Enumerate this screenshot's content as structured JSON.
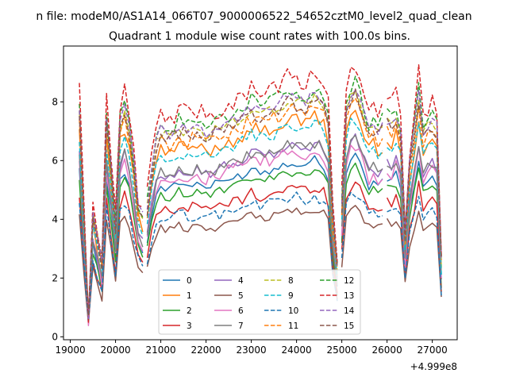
{
  "suptitle": "n file: modeM0/AS1A14_066T07_9000006522_54652cztM0_level2_quad_clean",
  "chart_data": {
    "type": "line",
    "title": "Quadrant 1 module wise count rates with 100.0s bins.",
    "xlabel": "",
    "ylabel": "",
    "offset_text": "+4.999e8",
    "xlim": [
      18850,
      27550
    ],
    "ylim": [
      -0.1,
      9.9
    ],
    "xticks": [
      19000,
      20000,
      21000,
      22000,
      23000,
      24000,
      25000,
      26000,
      27000
    ],
    "xtick_labels": [
      "19000",
      "20000",
      "21000",
      "22000",
      "23000",
      "24000",
      "25000",
      "26000",
      "27000"
    ],
    "yticks": [
      0,
      2,
      4,
      6,
      8
    ],
    "ytick_labels": [
      "0",
      "2",
      "4",
      "6",
      "8"
    ],
    "grid": false,
    "legend_position": "lower-center",
    "legend_columns": 4,
    "x": {
      "start": 19200,
      "step": 100,
      "segments": [
        [
          19200,
          20600
        ],
        [
          20700,
          24900
        ],
        [
          25000,
          25900
        ],
        [
          26000,
          27200
        ]
      ]
    },
    "series": [
      {
        "name": "0",
        "color": "#1f77b4",
        "dash": "solid",
        "level": 5.4,
        "spread": 0.15
      },
      {
        "name": "1",
        "color": "#ff7f0e",
        "dash": "solid",
        "level": 6.7,
        "spread": 0.25
      },
      {
        "name": "2",
        "color": "#2ca02c",
        "dash": "solid",
        "level": 5.1,
        "spread": 0.15
      },
      {
        "name": "3",
        "color": "#d62728",
        "dash": "solid",
        "level": 4.6,
        "spread": 0.2
      },
      {
        "name": "4",
        "color": "#9467bd",
        "dash": "solid",
        "level": 5.9,
        "spread": 0.2
      },
      {
        "name": "5",
        "color": "#8c564b",
        "dash": "solid",
        "level": 3.9,
        "spread": 0.15
      },
      {
        "name": "6",
        "color": "#e377c2",
        "dash": "solid",
        "level": 5.7,
        "spread": 0.25
      },
      {
        "name": "7",
        "color": "#7f7f7f",
        "dash": "solid",
        "level": 5.9,
        "spread": 0.2
      },
      {
        "name": "8",
        "color": "#bcbd22",
        "dash": "dashed",
        "level": 7.3,
        "spread": 0.2
      },
      {
        "name": "9",
        "color": "#17becf",
        "dash": "dashed",
        "level": 6.5,
        "spread": 0.2
      },
      {
        "name": "10",
        "color": "#1f77b4",
        "dash": "dashed",
        "level": 4.3,
        "spread": 0.2
      },
      {
        "name": "11",
        "color": "#ff7f0e",
        "dash": "dashed",
        "level": 7.0,
        "spread": 0.25
      },
      {
        "name": "12",
        "color": "#2ca02c",
        "dash": "dashed",
        "level": 7.6,
        "spread": 0.25
      },
      {
        "name": "13",
        "color": "#d62728",
        "dash": "dashed",
        "level": 8.0,
        "spread": 0.35
      },
      {
        "name": "14",
        "color": "#9467bd",
        "dash": "dashed",
        "level": 7.4,
        "spread": 0.2
      },
      {
        "name": "15",
        "color": "#8c564b",
        "dash": "dashed",
        "level": 7.2,
        "spread": 0.25
      }
    ],
    "shape": [
      [
        19200,
        1.05
      ],
      [
        19300,
        0.55
      ],
      [
        19400,
        0.1
      ],
      [
        19500,
        0.58
      ],
      [
        19600,
        0.45
      ],
      [
        19700,
        0.33
      ],
      [
        19800,
        1.0
      ],
      [
        19900,
        0.78
      ],
      [
        20000,
        0.5
      ],
      [
        20100,
        0.98
      ],
      [
        20200,
        1.05
      ],
      [
        20300,
        0.97
      ],
      [
        20400,
        0.8
      ],
      [
        20500,
        0.6
      ],
      [
        20600,
        0.55
      ],
      [
        20700,
        0.6
      ],
      [
        20800,
        0.75
      ],
      [
        20900,
        0.9
      ],
      [
        21000,
        0.95
      ],
      [
        21200,
        0.93
      ],
      [
        21400,
        0.97
      ],
      [
        21600,
        0.95
      ],
      [
        21800,
        0.97
      ],
      [
        22000,
        0.94
      ],
      [
        22200,
        0.96
      ],
      [
        22400,
        0.98
      ],
      [
        22600,
        1.0
      ],
      [
        22800,
        1.02
      ],
      [
        23000,
        1.06
      ],
      [
        23200,
        1.04
      ],
      [
        23400,
        1.05
      ],
      [
        23600,
        1.07
      ],
      [
        23800,
        1.1
      ],
      [
        24000,
        1.1
      ],
      [
        24200,
        1.08
      ],
      [
        24400,
        1.12
      ],
      [
        24600,
        1.08
      ],
      [
        24700,
        1.0
      ],
      [
        24800,
        0.55
      ],
      [
        24900,
        0.3
      ],
      [
        25000,
        0.62
      ],
      [
        25100,
        1.05
      ],
      [
        25200,
        1.12
      ],
      [
        25300,
        1.14
      ],
      [
        25400,
        1.1
      ],
      [
        25500,
        1.02
      ],
      [
        25600,
        0.95
      ],
      [
        25700,
        0.98
      ],
      [
        25800,
        0.95
      ],
      [
        25900,
        0.97
      ],
      [
        26000,
        1.0
      ],
      [
        26100,
        0.98
      ],
      [
        26200,
        1.02
      ],
      [
        26300,
        0.95
      ],
      [
        26400,
        0.45
      ],
      [
        26500,
        0.8
      ],
      [
        26600,
        0.95
      ],
      [
        26700,
        1.12
      ],
      [
        26800,
        0.95
      ],
      [
        26900,
        0.98
      ],
      [
        27000,
        1.0
      ],
      [
        27100,
        0.97
      ],
      [
        27200,
        0.35
      ]
    ]
  }
}
